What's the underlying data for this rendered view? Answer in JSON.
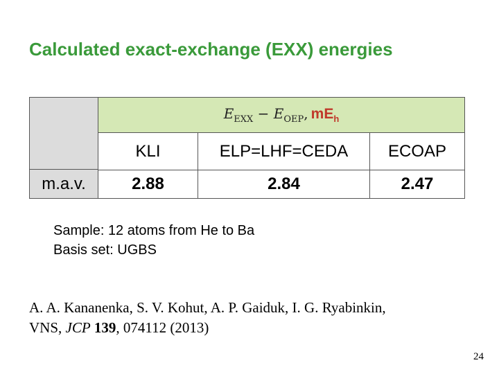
{
  "title": "Calculated exact-exchange (EXX) energies",
  "table": {
    "header": {
      "a": "E",
      "a_sub": "EXX",
      "op": "−",
      "b": "E",
      "b_sub": "OEP",
      "sep": ",",
      "unit": "mE",
      "unit_sub": "h"
    },
    "columns": [
      "KLI",
      "ELP=LHF=CEDA",
      "ECOAP"
    ],
    "rows": [
      {
        "label": "m.a.v.",
        "values": [
          "2.88",
          "2.84",
          "2.47"
        ]
      }
    ]
  },
  "notes": [
    {
      "label": "Sample:",
      "text": "12 atoms from He to Ba"
    },
    {
      "label": "Basis set:",
      "text": "UGBS"
    }
  ],
  "reference": {
    "line1": "A. A. Kananenka, S. V. Kohut, A. P. Gaiduk, I. G. Ryabinkin,",
    "authors2": "VNS,",
    "journal": "JCP",
    "volume": "139",
    "rest": ", 074112 (2013)"
  },
  "page_number": "24"
}
